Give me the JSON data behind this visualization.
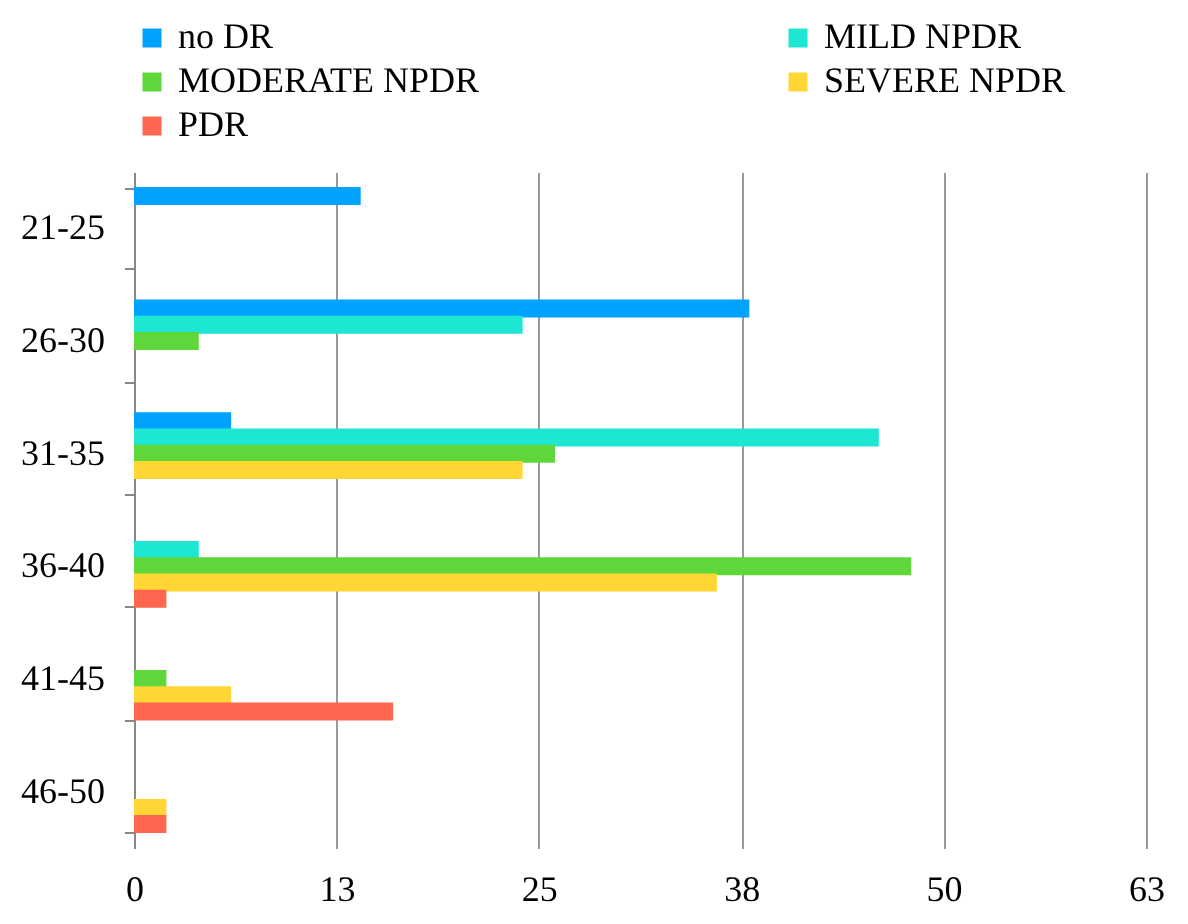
{
  "chart_data": {
    "type": "bar",
    "orientation": "horizontal",
    "categories": [
      "21-25",
      "26-30",
      "31-35",
      "36-40",
      "41-45",
      "46-50"
    ],
    "series": [
      {
        "name": "no DR",
        "color": "#00a2ff",
        "values": [
          14,
          38,
          6,
          null,
          null,
          null
        ]
      },
      {
        "name": "MILD NPDR",
        "color": "#1de6d2",
        "values": [
          null,
          24,
          46,
          4,
          null,
          null
        ]
      },
      {
        "name": "MODERATE NPDR",
        "color": "#5fd63a",
        "values": [
          null,
          4,
          26,
          48,
          2,
          null
        ]
      },
      {
        "name": "SEVERE NPDR",
        "color": "#ffd633",
        "values": [
          null,
          null,
          24,
          36,
          6,
          2
        ]
      },
      {
        "name": "PDR",
        "color": "#ff6650",
        "values": [
          null,
          null,
          null,
          2,
          16,
          2
        ]
      }
    ],
    "xlim": [
      0,
      62.5
    ],
    "xticks": [
      0,
      {
        "value": 12.5,
        "label": "13"
      },
      25,
      {
        "value": 37.5,
        "label": "38"
      },
      50,
      {
        "value": 62.5,
        "label": "63"
      }
    ],
    "grid": "x",
    "legend": "top"
  }
}
